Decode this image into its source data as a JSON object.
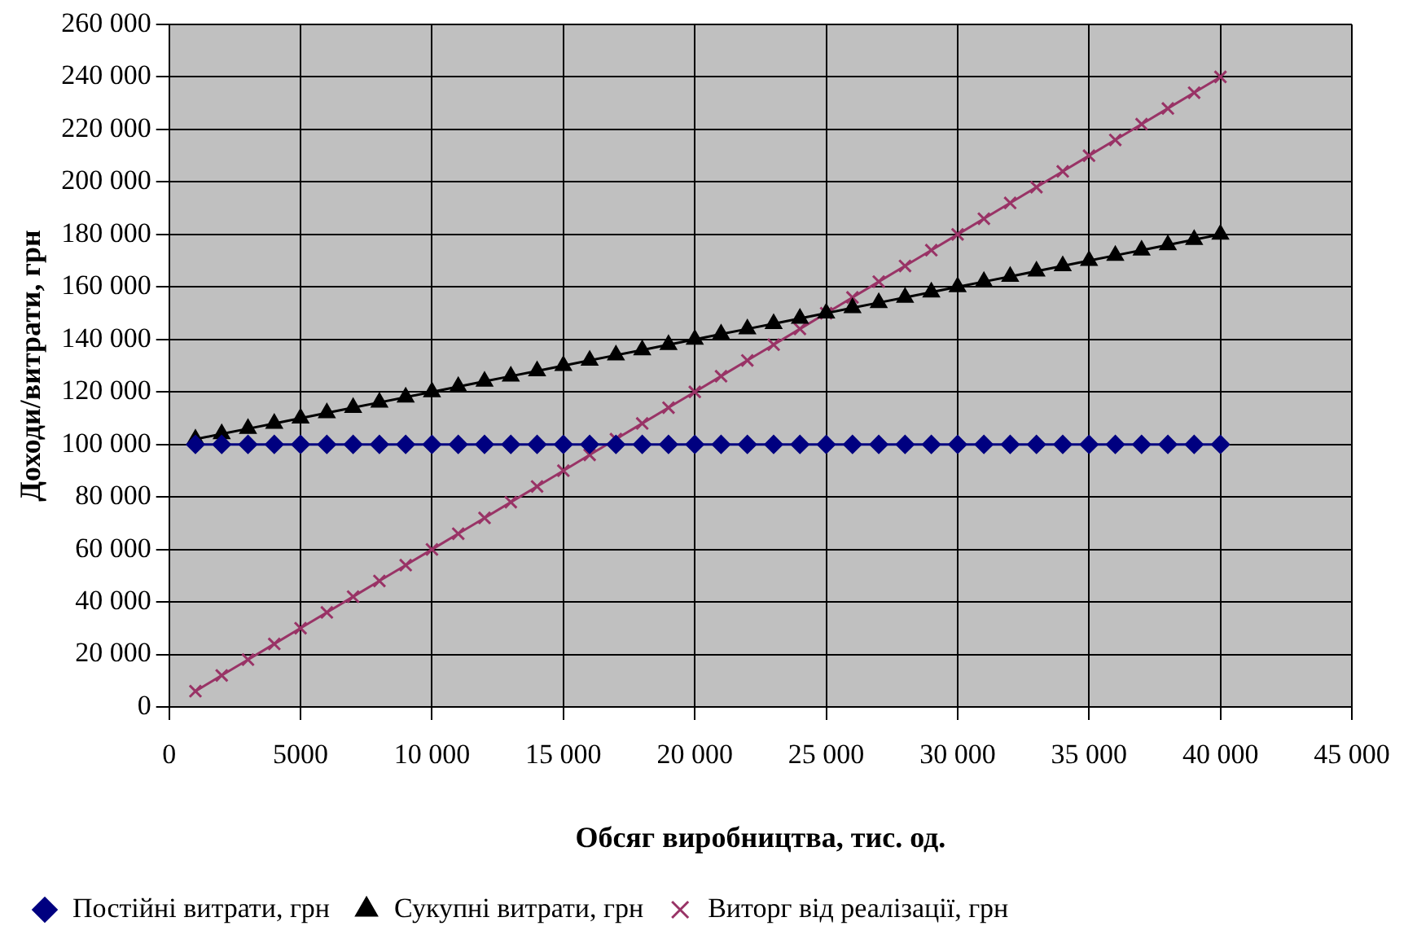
{
  "chart_data": {
    "type": "line",
    "xlabel": "Обсяг виробництва, тис. од.",
    "ylabel": "Доходи/витрати, грн",
    "x": [
      1000,
      2000,
      3000,
      4000,
      5000,
      6000,
      7000,
      8000,
      9000,
      10000,
      11000,
      12000,
      13000,
      14000,
      15000,
      16000,
      17000,
      18000,
      19000,
      20000,
      21000,
      22000,
      23000,
      24000,
      25000,
      26000,
      27000,
      28000,
      29000,
      30000,
      31000,
      32000,
      33000,
      34000,
      35000,
      36000,
      37000,
      38000,
      39000,
      40000
    ],
    "series": [
      {
        "name": "Постійні витрати, грн",
        "color": "#000080",
        "marker": "diamond",
        "values": [
          100000,
          100000,
          100000,
          100000,
          100000,
          100000,
          100000,
          100000,
          100000,
          100000,
          100000,
          100000,
          100000,
          100000,
          100000,
          100000,
          100000,
          100000,
          100000,
          100000,
          100000,
          100000,
          100000,
          100000,
          100000,
          100000,
          100000,
          100000,
          100000,
          100000,
          100000,
          100000,
          100000,
          100000,
          100000,
          100000,
          100000,
          100000,
          100000,
          100000
        ]
      },
      {
        "name": "Сукупні витрати, грн",
        "color": "#000000",
        "marker": "triangle",
        "values": [
          102000,
          104000,
          106000,
          108000,
          110000,
          112000,
          114000,
          116000,
          118000,
          120000,
          122000,
          124000,
          126000,
          128000,
          130000,
          132000,
          134000,
          136000,
          138000,
          140000,
          142000,
          144000,
          146000,
          148000,
          150000,
          152000,
          154000,
          156000,
          158000,
          160000,
          162000,
          164000,
          166000,
          168000,
          170000,
          172000,
          174000,
          176000,
          178000,
          180000
        ]
      },
      {
        "name": "Виторг від реалізації, грн",
        "color": "#993366",
        "marker": "cross",
        "values": [
          6000,
          12000,
          18000,
          24000,
          30000,
          36000,
          42000,
          48000,
          54000,
          60000,
          66000,
          72000,
          78000,
          84000,
          90000,
          96000,
          102000,
          108000,
          114000,
          120000,
          126000,
          132000,
          138000,
          144000,
          150000,
          156000,
          162000,
          168000,
          174000,
          180000,
          186000,
          192000,
          198000,
          204000,
          210000,
          216000,
          222000,
          228000,
          234000,
          240000
        ]
      }
    ],
    "xlim": [
      0,
      45000
    ],
    "xticks": [
      0,
      5000,
      {
        "value": 10000,
        "label": "10 000"
      },
      {
        "value": 15000,
        "label": "15 000"
      },
      {
        "value": 20000,
        "label": "20 000"
      },
      {
        "value": 25000,
        "label": "25 000"
      },
      {
        "value": 30000,
        "label": "30 000"
      },
      {
        "value": 35000,
        "label": "35 000"
      },
      {
        "value": 40000,
        "label": "40 000"
      },
      {
        "value": 45000,
        "label": "45 000"
      }
    ],
    "ylim": [
      0,
      260000
    ],
    "yticks": [
      0,
      {
        "value": 20000,
        "label": "20 000"
      },
      {
        "value": 40000,
        "label": "40 000"
      },
      {
        "value": 60000,
        "label": "60 000"
      },
      {
        "value": 80000,
        "label": "80 000"
      },
      {
        "value": 100000,
        "label": "100 000"
      },
      {
        "value": 120000,
        "label": "120 000"
      },
      {
        "value": 140000,
        "label": "140 000"
      },
      {
        "value": 160000,
        "label": "160 000"
      },
      {
        "value": 180000,
        "label": "180 000"
      },
      {
        "value": 200000,
        "label": "200 000"
      },
      {
        "value": 220000,
        "label": "220 000"
      },
      {
        "value": 240000,
        "label": "240 000"
      },
      {
        "value": 260000,
        "label": "260 000"
      }
    ],
    "grid": true,
    "legend": "bottom",
    "line_style": "solid"
  }
}
